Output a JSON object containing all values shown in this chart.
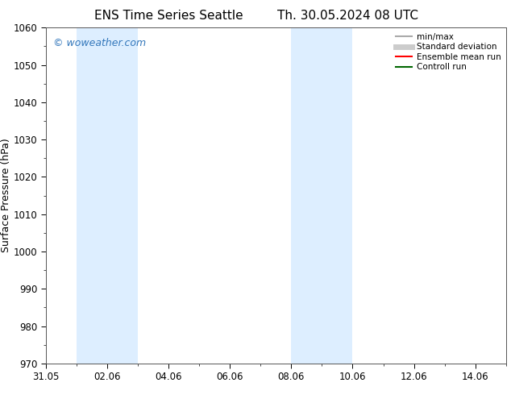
{
  "title_left": "ENS Time Series Seattle",
  "title_right": "Th. 30.05.2024 08 UTC",
  "ylabel": "Surface Pressure (hPa)",
  "ylim": [
    970,
    1060
  ],
  "yticks": [
    970,
    980,
    990,
    1000,
    1010,
    1020,
    1030,
    1040,
    1050,
    1060
  ],
  "xlabel_ticks": [
    "31.05",
    "02.06",
    "04.06",
    "06.06",
    "08.06",
    "10.06",
    "12.06",
    "14.06"
  ],
  "x_tick_positions": [
    0,
    2,
    4,
    6,
    8,
    10,
    12,
    14
  ],
  "x_range": [
    -0.0,
    15.0
  ],
  "background_color": "#ffffff",
  "plot_bg_color": "#ffffff",
  "watermark": "© woweather.com",
  "watermark_color": "#3377bb",
  "shaded_bands": [
    {
      "x_start": 1.0,
      "x_end": 2.0,
      "color": "#ddeeff"
    },
    {
      "x_start": 2.0,
      "x_end": 3.0,
      "color": "#ddeeff"
    },
    {
      "x_start": 8.0,
      "x_end": 9.0,
      "color": "#ddeeff"
    },
    {
      "x_start": 9.0,
      "x_end": 10.0,
      "color": "#ddeeff"
    }
  ],
  "legend_items": [
    {
      "label": "min/max",
      "color": "#aaaaaa",
      "lw": 1.5
    },
    {
      "label": "Standard deviation",
      "color": "#cccccc",
      "lw": 5
    },
    {
      "label": "Ensemble mean run",
      "color": "#ff0000",
      "lw": 1.5
    },
    {
      "label": "Controll run",
      "color": "#006600",
      "lw": 1.5
    }
  ],
  "title_fontsize": 11,
  "axis_label_fontsize": 9,
  "tick_fontsize": 8.5,
  "legend_fontsize": 7.5
}
